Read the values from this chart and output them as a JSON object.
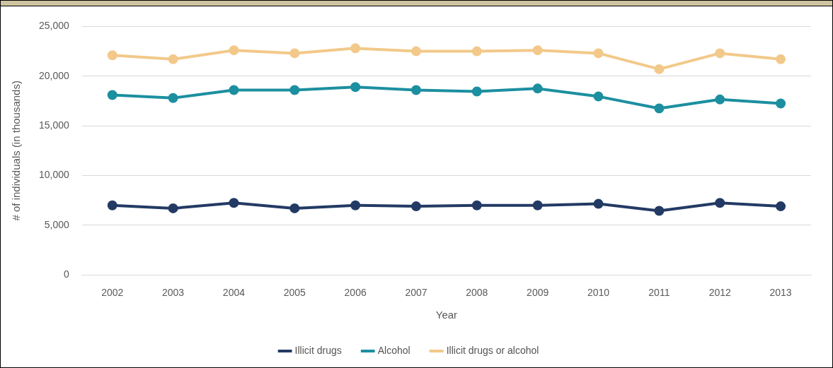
{
  "chart_data": {
    "type": "line",
    "xlabel": "Year",
    "ylabel": "# of individuals (in thousands)",
    "categories": [
      "2002",
      "2003",
      "2004",
      "2005",
      "2006",
      "2007",
      "2008",
      "2009",
      "2010",
      "2011",
      "2012",
      "2013"
    ],
    "series": [
      {
        "name": "Illicit drugs",
        "color": "#233a64",
        "values": [
          7000,
          6700,
          7250,
          6700,
          7000,
          6900,
          7000,
          7000,
          7150,
          6450,
          7250,
          6900
        ]
      },
      {
        "name": "Alcohol",
        "color": "#1c8fa0",
        "values": [
          18100,
          17800,
          18600,
          18600,
          18900,
          18600,
          18450,
          18750,
          17950,
          16750,
          17650,
          17250
        ]
      },
      {
        "name": "Illicit drugs or alcohol",
        "color": "#f2c98a",
        "values": [
          22100,
          21700,
          22600,
          22300,
          22800,
          22500,
          22500,
          22600,
          22300,
          20700,
          22300,
          21700
        ]
      }
    ],
    "ylim": [
      0,
      25000
    ],
    "yticks": [
      0,
      {
        "value": 5000,
        "label": "5,000"
      },
      {
        "value": 10000,
        "label": "10,000"
      },
      {
        "value": 15000,
        "label": "15,000"
      },
      {
        "value": 20000,
        "label": "20,000"
      },
      {
        "value": 25000,
        "label": "25,000"
      }
    ],
    "grid": "y",
    "legend": "bottom",
    "marker": "circle",
    "line_style": "solid"
  }
}
